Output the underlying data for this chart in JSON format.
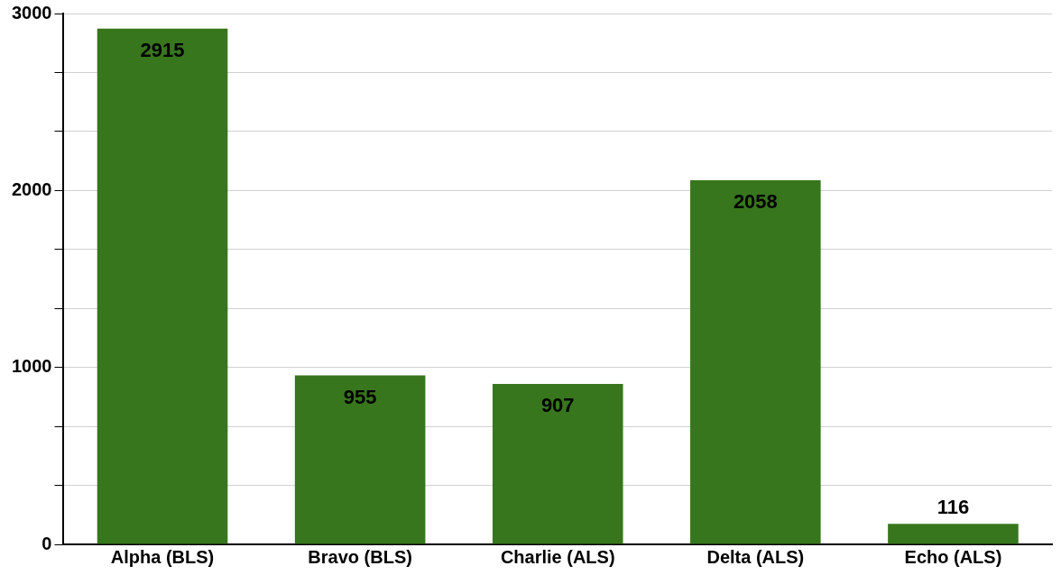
{
  "chart_data": {
    "type": "bar",
    "categories": [
      "Alpha (BLS)",
      "Bravo (BLS)",
      "Charlie (ALS)",
      "Delta (ALS)",
      "Echo (ALS)"
    ],
    "values": [
      2915,
      955,
      907,
      2058,
      116
    ],
    "color": "#38761d",
    "ylim": [
      0,
      3000
    ],
    "yticks": [
      0,
      {
        "value": 333,
        "label": null
      },
      {
        "value": 667,
        "label": null
      },
      1000,
      {
        "value": 1333,
        "label": null
      },
      {
        "value": 1667,
        "label": null
      },
      2000,
      {
        "value": 2333,
        "label": null
      },
      {
        "value": 2667,
        "label": null
      },
      3000
    ],
    "grid": "y",
    "legend": false,
    "data_labels": true
  }
}
